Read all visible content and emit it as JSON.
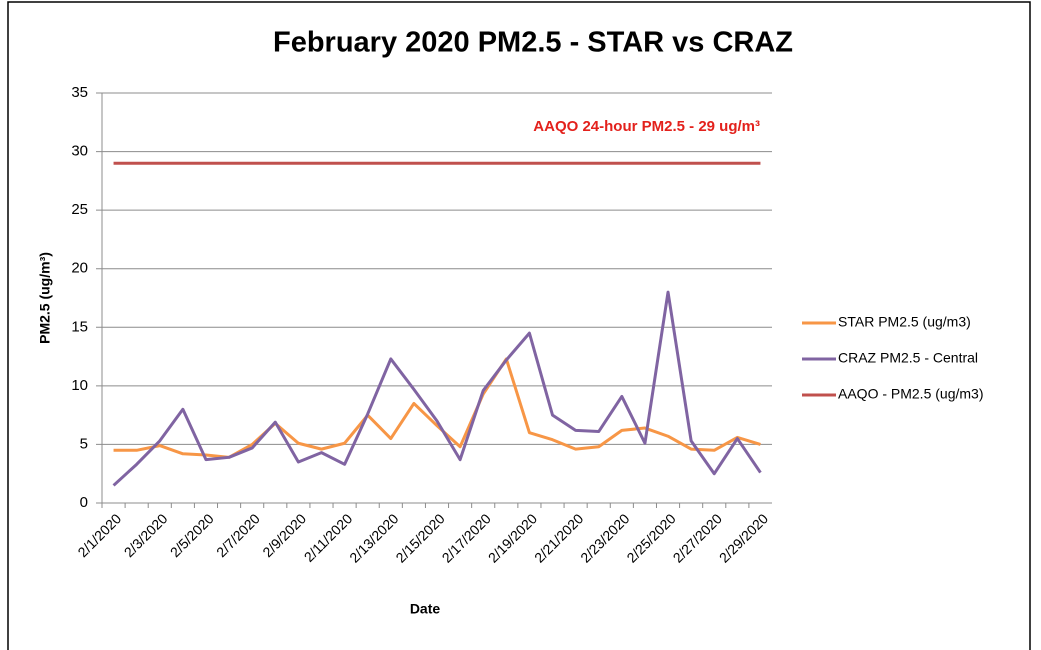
{
  "chart_data": {
    "type": "line",
    "title": "February 2020 PM2.5 - STAR vs CRAZ",
    "x_label": "Date",
    "y_label": "PM2.5 (ug/m³)",
    "annotation": "AAQO 24-hour PM2.5 - 29 ug/m³",
    "categories": [
      "2/1/2020",
      null,
      "2/3/2020",
      null,
      "2/5/2020",
      null,
      "2/7/2020",
      null,
      "2/9/2020",
      null,
      "2/11/2020",
      null,
      "2/13/2020",
      null,
      "2/15/2020",
      null,
      "2/17/2020",
      null,
      "2/19/2020",
      null,
      "2/21/2020",
      null,
      "2/23/2020",
      null,
      "2/25/2020",
      null,
      "2/27/2020",
      null,
      "2/29/2020"
    ],
    "series": [
      {
        "name": "STAR PM2.5 (ug/m3)",
        "color": "#f79646",
        "values": [
          4.5,
          4.5,
          4.9,
          4.2,
          4.1,
          3.9,
          5.0,
          6.8,
          5.1,
          4.6,
          5.1,
          7.5,
          5.5,
          8.5,
          6.6,
          4.8,
          9.3,
          12.3,
          6.0,
          5.4,
          4.6,
          4.8,
          6.2,
          6.4,
          5.7,
          4.6,
          4.5,
          5.6,
          5.0
        ]
      },
      {
        "name": "CRAZ PM2.5 - Central",
        "color": "#8064a2",
        "values": [
          1.5,
          3.3,
          5.3,
          8.0,
          3.7,
          3.9,
          4.7,
          6.9,
          3.5,
          4.3,
          3.3,
          7.6,
          12.3,
          9.7,
          7.0,
          3.7,
          9.6,
          12.2,
          14.5,
          7.5,
          6.2,
          6.1,
          9.1,
          5.1,
          18.0,
          5.3,
          2.5,
          5.5,
          2.6
        ]
      },
      {
        "name": "AAQO - PM2.5 (ug/m3)",
        "color": "#c0504d",
        "values": [
          29,
          29,
          29,
          29,
          29,
          29,
          29,
          29,
          29,
          29,
          29,
          29,
          29,
          29,
          29,
          29,
          29,
          29,
          29,
          29,
          29,
          29,
          29,
          29,
          29,
          29,
          29,
          29,
          29
        ]
      }
    ],
    "ylim": [
      0,
      35
    ],
    "yticks": [
      0,
      5,
      10,
      15,
      20,
      25,
      30,
      35
    ],
    "grid": true,
    "legend": "right"
  }
}
